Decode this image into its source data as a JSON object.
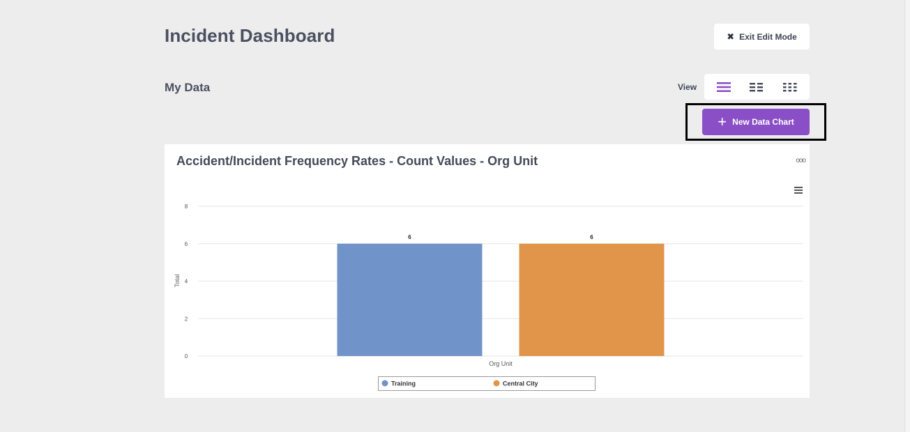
{
  "page": {
    "title": "Incident Dashboard",
    "exit_edit_label": "Exit Edit Mode"
  },
  "section": {
    "title": "My Data",
    "view_label": "View"
  },
  "view_modes": [
    "list-view-icon",
    "two-column-grid-icon",
    "three-column-grid-icon"
  ],
  "actions": {
    "new_chart_label": "New Data Chart"
  },
  "colors": {
    "accent": "#8a4fc6",
    "training": "#7094c9",
    "central_city": "#e0954b"
  },
  "chart_data": {
    "type": "bar",
    "title": "Accident/Incident Frequency Rates - Count Values - Org Unit",
    "xlabel": "Org Unit",
    "ylabel": "Total",
    "ylim": [
      0,
      8
    ],
    "yticks": [
      "0",
      "2",
      "4",
      "6",
      "8"
    ],
    "series": [
      {
        "name": "Training",
        "values": [
          6
        ],
        "label": "6",
        "color": "#7094c9"
      },
      {
        "name": "Central City",
        "values": [
          6
        ],
        "label": "6",
        "color": "#e0954b"
      }
    ],
    "legend_position": "bottom-center"
  }
}
